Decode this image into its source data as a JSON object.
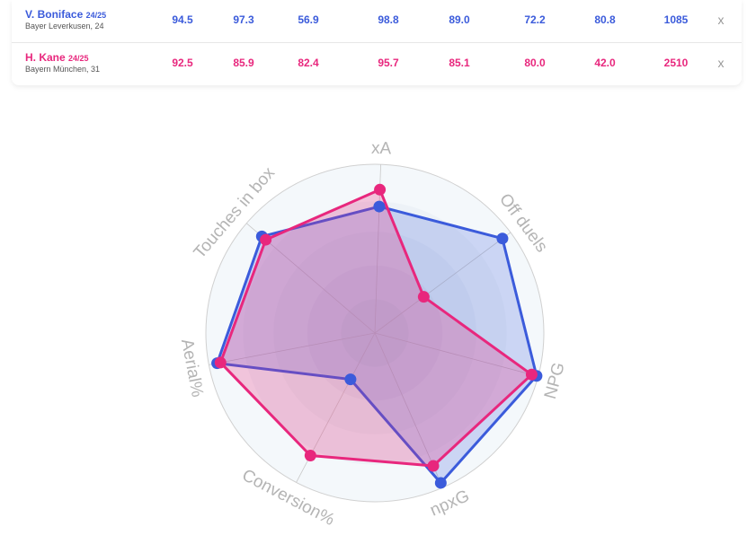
{
  "players": [
    {
      "name": "V. Boniface",
      "season": "24/25",
      "team": "Bayer Leverkusen, 24",
      "values": [
        "94.5",
        "97.3",
        "56.9",
        "98.8",
        "89.0",
        "72.2",
        "80.8",
        "1085"
      ],
      "remove_label": "x",
      "color": "#3b5bdb"
    },
    {
      "name": "H. Kane",
      "season": "24/25",
      "team": "Bayern München, 31",
      "values": [
        "92.5",
        "85.9",
        "82.4",
        "95.7",
        "85.1",
        "80.0",
        "42.0",
        "2510"
      ],
      "remove_label": "x",
      "color": "#e8277d"
    }
  ],
  "chart_data": {
    "type": "radar",
    "axes": [
      "xA",
      "Off duels",
      "NPG",
      "npxG",
      "Conversion%",
      "Aerial%",
      "Touches in box"
    ],
    "range": [
      0,
      100
    ],
    "series": [
      {
        "name": "V. Boniface",
        "color": "#3b5bdb",
        "fill": "rgba(59,91,219,0.22)",
        "values": [
          75,
          94,
          99,
          97,
          31,
          95,
          88
        ]
      },
      {
        "name": "H. Kane",
        "color": "#e8277d",
        "fill": "rgba(232,39,125,0.25)",
        "values": [
          85,
          36,
          96,
          86,
          82,
          93,
          85
        ]
      }
    ]
  }
}
